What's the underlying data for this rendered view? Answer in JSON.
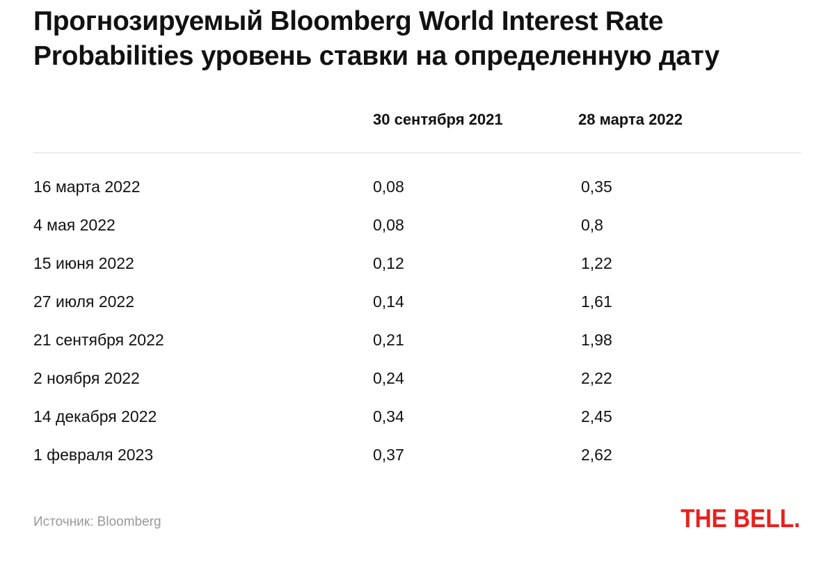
{
  "header": {
    "title": "Прогнозируемый Bloomberg World Interest Rate Probabilities уровень ставки на определенную дату"
  },
  "table": {
    "columns": [
      "30 сентября 2021",
      "28 марта 2022"
    ],
    "rows": [
      [
        "16 марта 2022",
        "0,08",
        "0,35"
      ],
      [
        "4 мая 2022",
        "0,08",
        "0,8"
      ],
      [
        "15 июня 2022",
        "0,12",
        "1,22"
      ],
      [
        "27 июля 2022",
        "0,14",
        "1,61"
      ],
      [
        "21 сентября 2022",
        "0,21",
        "1,98"
      ],
      [
        "2 ноября 2022",
        "0,24",
        "2,22"
      ],
      [
        "14 декабря 2022",
        "0,34",
        "2,45"
      ],
      [
        "1 февраля 2023",
        "0,37",
        "2,62"
      ]
    ]
  },
  "footer": {
    "source": "Источник: Bloomberg",
    "logo": "THE BELL."
  }
}
